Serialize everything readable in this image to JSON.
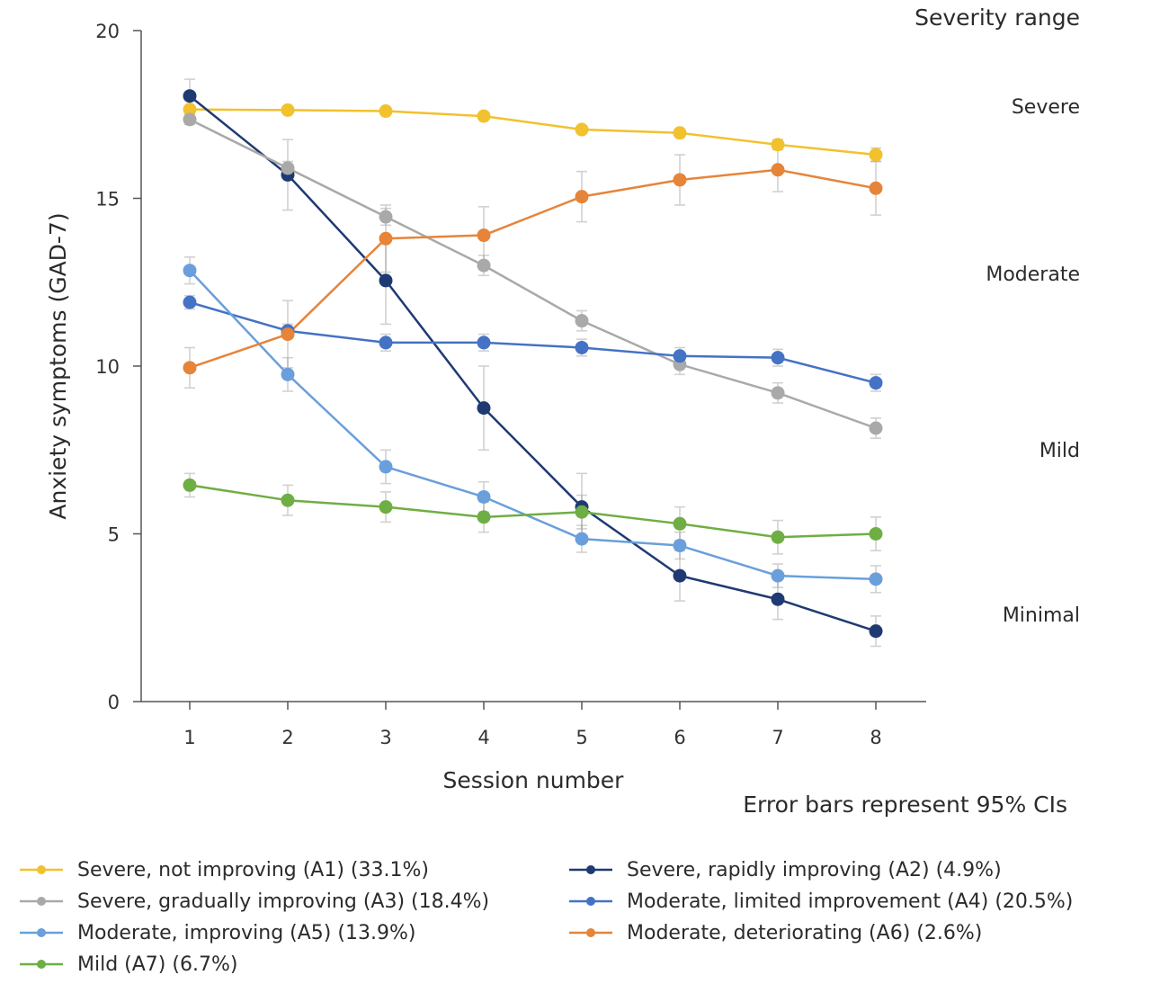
{
  "chart_data": {
    "type": "line",
    "title": "",
    "xlabel": "Session number",
    "ylabel": "Anxiety symptoms (GAD-7)",
    "x": [
      1,
      2,
      3,
      4,
      5,
      6,
      7,
      8
    ],
    "xticks": [
      "1",
      "2",
      "3",
      "4",
      "5",
      "6",
      "7",
      "8"
    ],
    "ylim": [
      0,
      20
    ],
    "yticks": [
      "0",
      "5",
      "10",
      "15",
      "20"
    ],
    "grid": false,
    "error_bars": "95% CI",
    "note": "Error bars represent 95% CIs",
    "severity_range": {
      "title": "Severity range",
      "labels": [
        "Severe",
        "Moderate",
        "Mild",
        "Minimal"
      ]
    },
    "legend_position": "bottom",
    "series": [
      {
        "id": "A1",
        "name": "Severe, not improving (A1) (33.1%)",
        "color": "#F2C12E",
        "values": [
          17.65,
          17.63,
          17.6,
          17.45,
          17.05,
          16.95,
          16.6,
          16.3
        ],
        "ci": [
          0.1,
          0.1,
          0.1,
          0.1,
          0.1,
          0.12,
          0.15,
          0.2
        ]
      },
      {
        "id": "A2",
        "name": "Severe, rapidly improving (A2) (4.9%)",
        "color": "#1F3A72",
        "values": [
          18.05,
          15.7,
          12.55,
          8.75,
          5.8,
          3.75,
          3.05,
          2.1
        ],
        "ci": [
          0.5,
          1.05,
          1.3,
          1.25,
          1.0,
          0.75,
          0.6,
          0.45
        ]
      },
      {
        "id": "A3",
        "name": "Severe, gradually improving (A3) (18.4%)",
        "color": "#A9A9A9",
        "values": [
          17.35,
          15.9,
          14.45,
          13.0,
          11.35,
          10.05,
          9.2,
          8.15
        ],
        "ci": [
          0.15,
          0.2,
          0.25,
          0.3,
          0.3,
          0.3,
          0.3,
          0.3
        ]
      },
      {
        "id": "A4",
        "name": "Moderate, limited improvement (A4) (20.5%)",
        "color": "#4472C4",
        "values": [
          11.9,
          11.05,
          10.7,
          10.7,
          10.55,
          10.3,
          10.25,
          9.5
        ],
        "ci": [
          0.2,
          0.2,
          0.25,
          0.25,
          0.25,
          0.25,
          0.25,
          0.25
        ]
      },
      {
        "id": "A5",
        "name": "Moderate, improving (A5) (13.9%)",
        "color": "#6A9FDB",
        "values": [
          12.85,
          9.75,
          7.0,
          6.1,
          4.85,
          4.65,
          3.75,
          3.65
        ],
        "ci": [
          0.4,
          0.5,
          0.5,
          0.45,
          0.4,
          0.4,
          0.35,
          0.4
        ]
      },
      {
        "id": "A6",
        "name": "Moderate, deteriorating (A6) (2.6%)",
        "color": "#E6843A",
        "values": [
          9.95,
          10.95,
          13.8,
          13.9,
          15.05,
          15.55,
          15.85,
          15.3
        ],
        "ci": [
          0.6,
          1.0,
          1.0,
          0.85,
          0.75,
          0.75,
          0.65,
          0.8
        ]
      },
      {
        "id": "A7",
        "name": "Mild (A7) (6.7%)",
        "color": "#6FAE44",
        "values": [
          6.45,
          6.0,
          5.8,
          5.5,
          5.65,
          5.3,
          4.9,
          5.0
        ],
        "ci": [
          0.35,
          0.45,
          0.45,
          0.45,
          0.5,
          0.5,
          0.5,
          0.5
        ]
      }
    ]
  },
  "legend": [
    {
      "label": "Severe, not improving (A1) (33.1%)",
      "color": "#F2C12E"
    },
    {
      "label": "Severe, rapidly improving (A2) (4.9%)",
      "color": "#1F3A72"
    },
    {
      "label": "Severe, gradually improving (A3) (18.4%)",
      "color": "#A9A9A9"
    },
    {
      "label": "Moderate, limited improvement (A4) (20.5%)",
      "color": "#4472C4"
    },
    {
      "label": "Moderate, improving (A5) (13.9%)",
      "color": "#6A9FDB"
    },
    {
      "label": "Moderate, deteriorating (A6) (2.6%)",
      "color": "#E6843A"
    },
    {
      "label": "Mild (A7) (6.7%)",
      "color": "#6FAE44"
    }
  ]
}
